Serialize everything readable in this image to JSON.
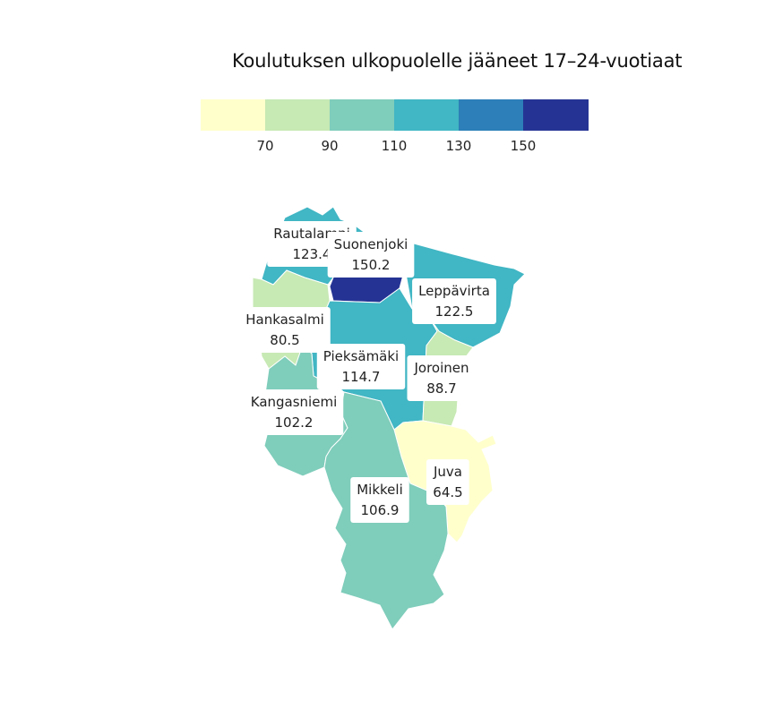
{
  "title": "Koulutuksen ulkopuolelle jääneet 17–24-vuotiaat",
  "legend": {
    "colors": [
      "#ffffcc",
      "#c7e9b4",
      "#7fcdbb",
      "#41b6c4",
      "#2c7fb8",
      "#253494"
    ],
    "ticks": [
      "70",
      "90",
      "110",
      "130",
      "150"
    ]
  },
  "chart_data": {
    "type": "choropleth",
    "title": "Koulutuksen ulkopuolelle jääneet 17–24-vuotiaat",
    "legend_breaks": [
      70,
      90,
      110,
      130,
      150
    ],
    "regions": [
      {
        "name": "Rautalampi",
        "value": 123.4,
        "value_label": "123.4"
      },
      {
        "name": "Suonenjoki",
        "value": 150.2,
        "value_label": "150.2"
      },
      {
        "name": "Leppävirta",
        "value": 122.5,
        "value_label": "122.5"
      },
      {
        "name": "Hankasalmi",
        "value": 80.5,
        "value_label": "80.5"
      },
      {
        "name": "Pieksämäki",
        "value": 114.7,
        "value_label": "114.7"
      },
      {
        "name": "Joroinen",
        "value": 88.7,
        "value_label": "88.7"
      },
      {
        "name": "Kangasniemi",
        "value": 102.2,
        "value_label": "102.2"
      },
      {
        "name": "Juva",
        "value": 64.5,
        "value_label": "64.5"
      },
      {
        "name": "Mikkeli",
        "value": 106.9,
        "value_label": "106.9"
      }
    ]
  }
}
